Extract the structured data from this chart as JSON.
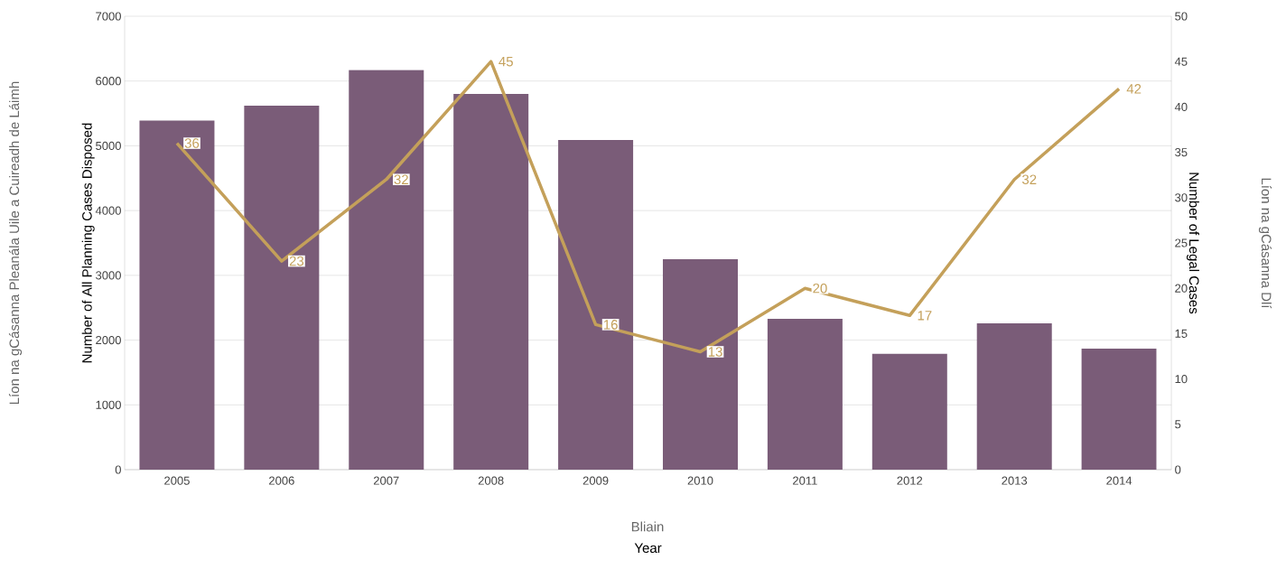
{
  "chart_data": {
    "type": "bar",
    "xlabel": "Year",
    "ylabel": "Number of All Planning Cases Disposed",
    "y2label": "Number of Legal Cases",
    "annotations": [
      "Líon na gCásanna Pleanála Uile a Cuireadh de Láimh",
      "Líon na gCásanna Dlí",
      "Bliain"
    ],
    "categories": [
      "2005",
      "2006",
      "2007",
      "2008",
      "2009",
      "2010",
      "2011",
      "2012",
      "2013",
      "2014"
    ],
    "series": [
      {
        "color": "#7a5c78",
        "values": [
          5390,
          5620,
          6170,
          5800,
          5090,
          3250,
          2330,
          1790,
          2260,
          1870
        ]
      },
      {
        "type": "line",
        "axis": "y2",
        "color": "#c4a05a",
        "data_labels": true,
        "values": [
          36,
          23,
          32,
          45,
          16,
          13,
          20,
          17,
          32,
          42
        ]
      }
    ],
    "ylim": [
      0,
      7000
    ],
    "yticks": [
      0,
      1000,
      2000,
      3000,
      4000,
      5000,
      6000,
      7000
    ],
    "y2lim": [
      0,
      50
    ],
    "y2ticks": [
      0,
      5,
      10,
      15,
      20,
      25,
      30,
      35,
      40,
      45,
      50
    ],
    "grid": "y"
  }
}
